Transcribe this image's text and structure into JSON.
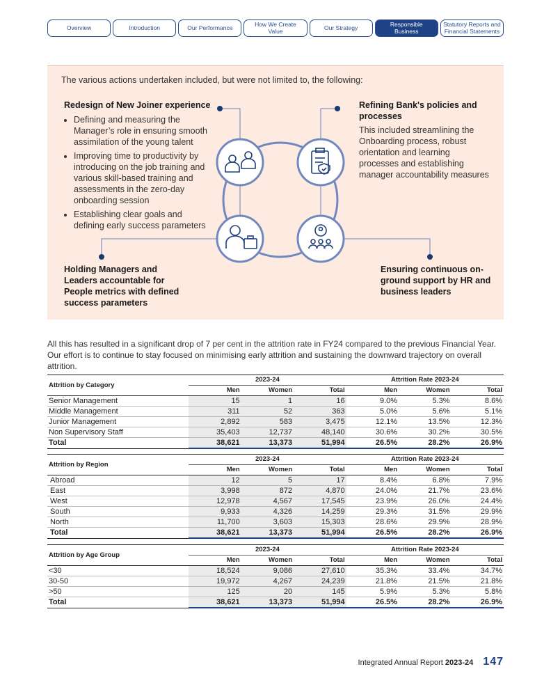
{
  "nav": {
    "tabs": [
      "Overview",
      "Introduction",
      "Our Performance",
      "How We Create Value",
      "Our Strategy",
      "Responsible Business",
      "Statutory Reports and Financial Statements"
    ],
    "active": 5
  },
  "panel": {
    "intro": "The various actions undertaken included, but were not limited to, the following:",
    "top_left": {
      "heading": "Redesign of New Joiner experience",
      "bullets": [
        "Defining and measuring the Manager’s role in ensuring smooth assimilation of the young talent",
        "Improving time to productivity by introducing on the job training and various skill-based training and assessments in the zero-day onboarding session",
        "Establishing clear goals and defining early success parameters"
      ]
    },
    "top_right": {
      "heading": "Refining Bank's policies and processes",
      "text": "This included streamlining the Onboarding process, robust orientation and learning processes and establishing manager accountability measures"
    },
    "bottom_left": {
      "heading": "Holding Managers and Leaders accountable for People metrics with defined success parameters"
    },
    "bottom_right": {
      "heading": "Ensuring continuous on-ground support by HR and business leaders"
    }
  },
  "paragraph": "All this has resulted in a significant drop of 7 per cent in the attrition rate in FY24 compared to the previous Financial Year. Our effort is to continue to stay focused on minimising early attrition and sustaining the downward trajectory on overall attrition.",
  "tables": [
    {
      "title": "Attrition by Category",
      "groups": [
        "2023-24",
        "Attrition Rate 2023-24"
      ],
      "columns": [
        "Men",
        "Women",
        "Total",
        "Men",
        "Women",
        "Total"
      ],
      "rows": [
        [
          "Senior Management",
          "15",
          "1",
          "16",
          "9.0%",
          "5.3%",
          "8.6%"
        ],
        [
          "Middle Management",
          "311",
          "52",
          "363",
          "5.0%",
          "5.6%",
          "5.1%"
        ],
        [
          "Junior Management",
          "2,892",
          "583",
          "3,475",
          "12.1%",
          "13.5%",
          "12.3%"
        ],
        [
          "Non Supervisory Staff",
          "35,403",
          "12,737",
          "48,140",
          "30.6%",
          "30.2%",
          "30.5%"
        ]
      ],
      "total": [
        "Total",
        "38,621",
        "13,373",
        "51,994",
        "26.5%",
        "28.2%",
        "26.9%"
      ]
    },
    {
      "title": "Attrition by Region",
      "groups": [
        "2023-24",
        "Attrition Rate 2023-24"
      ],
      "columns": [
        "Men",
        "Women",
        "Total",
        "Men",
        "Women",
        "Total"
      ],
      "rows": [
        [
          "Abroad",
          "12",
          "5",
          "17",
          "8.4%",
          "6.8%",
          "7.9%"
        ],
        [
          "East",
          "3,998",
          "872",
          "4,870",
          "24.0%",
          "21.7%",
          "23.6%"
        ],
        [
          "West",
          "12,978",
          "4,567",
          "17,545",
          "23.9%",
          "26.0%",
          "24.4%"
        ],
        [
          "South",
          "9,933",
          "4,326",
          "14,259",
          "29.3%",
          "31.5%",
          "29.9%"
        ],
        [
          "North",
          "11,700",
          "3,603",
          "15,303",
          "28.6%",
          "29.9%",
          "28.9%"
        ]
      ],
      "total": [
        "Total",
        "38,621",
        "13,373",
        "51,994",
        "26.5%",
        "28.2%",
        "26.9%"
      ]
    },
    {
      "title": "Attrition by Age Group",
      "groups": [
        "2023-24",
        "Attrition Rate 2023-24"
      ],
      "columns": [
        "Men",
        "Women",
        "Total",
        "Men",
        "Women",
        "Total"
      ],
      "rows": [
        [
          "<30",
          "18,524",
          "9,086",
          "27,610",
          "35.3%",
          "33.4%",
          "34.7%"
        ],
        [
          "30-50",
          "19,972",
          "4,267",
          "24,239",
          "21.8%",
          "21.5%",
          "21.8%"
        ],
        [
          ">50",
          "125",
          "20",
          "145",
          "5.9%",
          "5.3%",
          "5.8%"
        ]
      ],
      "total": [
        "Total",
        "38,621",
        "13,373",
        "51,994",
        "26.5%",
        "28.2%",
        "26.9%"
      ]
    }
  ],
  "footer": {
    "report": "Integrated Annual Report",
    "year": "2023-24",
    "page": "147"
  }
}
